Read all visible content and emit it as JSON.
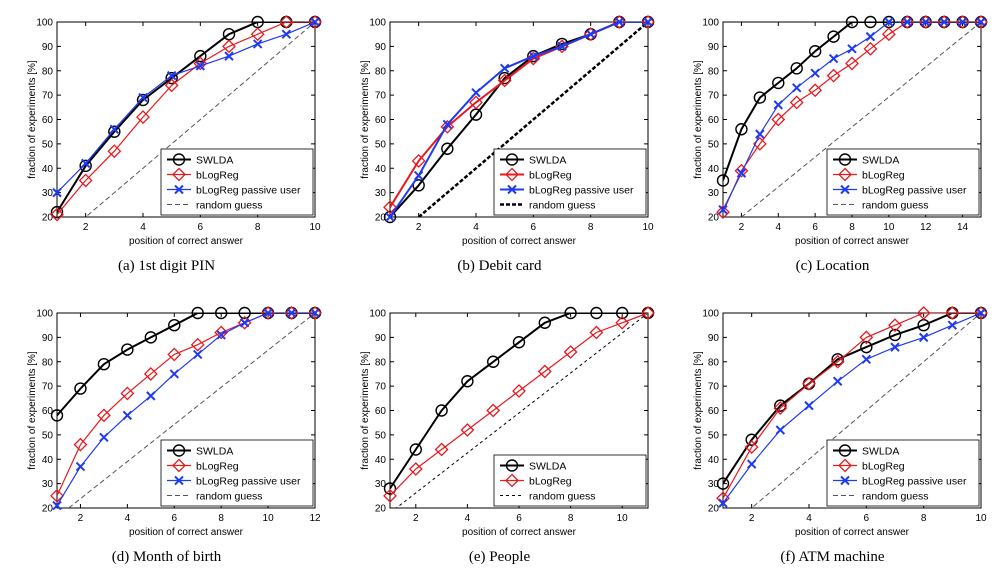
{
  "figure": {
    "colors": {
      "swlda": "#000000",
      "blogreg": "#e8191f",
      "passive": "#1f3bf0",
      "random": "#555555",
      "randomThick": "#000000"
    }
  },
  "chart_data": [
    {
      "id": "a",
      "type": "line",
      "caption": "(a) 1st digit PIN",
      "xlabel": "position of correct answer",
      "ylabel": "fraction of experiments [%]",
      "xlim": [
        1,
        10
      ],
      "ylim": [
        20,
        100
      ],
      "xticks": [
        2,
        4,
        6,
        8,
        10
      ],
      "yticks": [
        20,
        30,
        40,
        50,
        60,
        70,
        80,
        90,
        100
      ],
      "legend_position": "bottom-right",
      "series": [
        {
          "name": "SWLDA",
          "marker": "circle",
          "color": "#000000",
          "width": 2,
          "x": [
            1,
            2,
            3,
            4,
            5,
            6,
            7,
            8,
            9,
            10
          ],
          "y": [
            22,
            41,
            55,
            68,
            77,
            86,
            95,
            100,
            100,
            100
          ]
        },
        {
          "name": "bLogReg",
          "marker": "diamond",
          "color": "#e8191f",
          "width": 1.2,
          "x": [
            1,
            2,
            3,
            4,
            5,
            6,
            7,
            8,
            9,
            10
          ],
          "y": [
            21,
            35,
            47,
            61,
            74,
            83,
            90,
            95,
            100,
            100
          ]
        },
        {
          "name": "bLogReg passive user",
          "marker": "x",
          "color": "#1f3bf0",
          "width": 1.2,
          "x": [
            1,
            2,
            3,
            4,
            5,
            6,
            7,
            8,
            9,
            10
          ],
          "y": [
            30,
            42,
            56,
            69,
            78,
            82,
            86,
            91,
            95,
            100
          ]
        },
        {
          "name": "random guess",
          "marker": "none",
          "color": "#555555",
          "width": 1,
          "dash": "5,3",
          "x": [
            1,
            10
          ],
          "y": [
            10,
            100
          ]
        }
      ]
    },
    {
      "id": "b",
      "type": "line",
      "caption": "(b) Debit card",
      "xlabel": "position of correct answer",
      "ylabel": "fraction of experiments [%]",
      "xlim": [
        1,
        10
      ],
      "ylim": [
        20,
        100
      ],
      "xticks": [
        2,
        4,
        6,
        8,
        10
      ],
      "yticks": [
        20,
        30,
        40,
        50,
        60,
        70,
        80,
        90,
        100
      ],
      "legend_position": "bottom-right",
      "series": [
        {
          "name": "SWLDA",
          "marker": "circle",
          "color": "#000000",
          "width": 2,
          "x": [
            1,
            2,
            3,
            4,
            5,
            6,
            7,
            8,
            9,
            10
          ],
          "y": [
            20,
            33,
            48,
            62,
            77,
            86,
            91,
            95,
            100,
            100
          ]
        },
        {
          "name": "bLogReg",
          "marker": "diamond",
          "color": "#e8191f",
          "width": 2,
          "x": [
            1,
            2,
            3,
            4,
            5,
            6,
            7,
            8,
            9,
            10
          ],
          "y": [
            24,
            43,
            57,
            67,
            76,
            85,
            90,
            95,
            100,
            100
          ]
        },
        {
          "name": "bLogReg passive user",
          "marker": "x",
          "color": "#1f3bf0",
          "width": 2,
          "x": [
            1,
            2,
            3,
            4,
            5,
            6,
            7,
            8,
            9,
            10
          ],
          "y": [
            20,
            37,
            58,
            71,
            81,
            86,
            90,
            95,
            100,
            100
          ]
        },
        {
          "name": "random guess",
          "marker": "none",
          "color": "#000000",
          "width": 2.5,
          "dash": "4,2",
          "x": [
            2,
            10
          ],
          "y": [
            20,
            100
          ]
        }
      ]
    },
    {
      "id": "c",
      "type": "line",
      "caption": "(c) Location",
      "xlabel": "position of correct answer",
      "ylabel": "fraction of experiments [%]",
      "xlim": [
        1,
        15
      ],
      "ylim": [
        20,
        100
      ],
      "xticks": [
        2,
        4,
        6,
        8,
        10,
        12,
        14
      ],
      "yticks": [
        20,
        30,
        40,
        50,
        60,
        70,
        80,
        90,
        100
      ],
      "legend_position": "bottom-right",
      "series": [
        {
          "name": "SWLDA",
          "marker": "circle",
          "color": "#000000",
          "width": 2,
          "x": [
            1,
            2,
            3,
            4,
            5,
            6,
            7,
            8,
            9,
            10,
            11,
            12,
            13,
            14,
            15
          ],
          "y": [
            35,
            56,
            69,
            75,
            81,
            88,
            94,
            100,
            100,
            100,
            100,
            100,
            100,
            100,
            100
          ]
        },
        {
          "name": "bLogReg",
          "marker": "diamond",
          "color": "#e8191f",
          "width": 1.2,
          "x": [
            1,
            2,
            3,
            4,
            5,
            6,
            7,
            8,
            9,
            10,
            11,
            12,
            13,
            14,
            15
          ],
          "y": [
            22,
            39,
            50,
            60,
            67,
            72,
            78,
            83,
            89,
            95,
            100,
            100,
            100,
            100,
            100
          ]
        },
        {
          "name": "bLogReg passive user",
          "marker": "x",
          "color": "#1f3bf0",
          "width": 1.2,
          "x": [
            1,
            2,
            3,
            4,
            5,
            6,
            7,
            8,
            9,
            10,
            11,
            12,
            13,
            14,
            15
          ],
          "y": [
            23,
            38,
            54,
            66,
            73,
            79,
            85,
            89,
            94,
            100,
            100,
            100,
            100,
            100,
            100
          ]
        },
        {
          "name": "random guess",
          "marker": "none",
          "color": "#555555",
          "width": 1,
          "dash": "5,3",
          "x": [
            2,
            15
          ],
          "y": [
            20,
            100
          ]
        }
      ]
    },
    {
      "id": "d",
      "type": "line",
      "caption": "(d) Month of birth",
      "xlabel": "position of correct answer",
      "ylabel": "fraction of experiments [%]",
      "xlim": [
        1,
        12
      ],
      "ylim": [
        20,
        100
      ],
      "xticks": [
        2,
        4,
        6,
        8,
        10,
        12
      ],
      "yticks": [
        20,
        30,
        40,
        50,
        60,
        70,
        80,
        90,
        100
      ],
      "legend_position": "bottom-right",
      "series": [
        {
          "name": "SWLDA",
          "marker": "circle",
          "color": "#000000",
          "width": 2,
          "x": [
            1,
            2,
            3,
            4,
            5,
            6,
            7,
            8,
            9,
            10,
            11,
            12
          ],
          "y": [
            58,
            69,
            79,
            85,
            90,
            95,
            100,
            100,
            100,
            100,
            100,
            100
          ]
        },
        {
          "name": "bLogReg",
          "marker": "diamond",
          "color": "#e8191f",
          "width": 1.2,
          "x": [
            1,
            2,
            3,
            4,
            5,
            6,
            7,
            8,
            9,
            10,
            11,
            12
          ],
          "y": [
            25,
            46,
            58,
            67,
            75,
            83,
            87,
            92,
            96,
            100,
            100,
            100
          ]
        },
        {
          "name": "bLogReg passive user",
          "marker": "x",
          "color": "#1f3bf0",
          "width": 1.2,
          "x": [
            1,
            2,
            3,
            4,
            5,
            6,
            7,
            8,
            9,
            10,
            11,
            12
          ],
          "y": [
            21,
            37,
            49,
            58,
            66,
            75,
            83,
            91,
            96,
            100,
            100,
            100
          ]
        },
        {
          "name": "random guess",
          "marker": "none",
          "color": "#555555",
          "width": 1,
          "dash": "5,3",
          "x": [
            1.5,
            12
          ],
          "y": [
            20,
            100
          ]
        }
      ]
    },
    {
      "id": "e",
      "type": "line",
      "caption": "(e) People",
      "xlabel": "position of correct answer",
      "ylabel": "fraction of experiments [%]",
      "xlim": [
        1,
        11
      ],
      "ylim": [
        20,
        100
      ],
      "xticks": [
        2,
        4,
        6,
        8,
        10
      ],
      "yticks": [
        20,
        30,
        40,
        50,
        60,
        70,
        80,
        90,
        100
      ],
      "legend_position": "bottom-right",
      "series": [
        {
          "name": "SWLDA",
          "marker": "circle",
          "color": "#000000",
          "width": 2,
          "x": [
            1,
            2,
            3,
            4,
            5,
            6,
            7,
            8,
            9,
            10,
            11
          ],
          "y": [
            28,
            44,
            60,
            72,
            80,
            88,
            96,
            100,
            100,
            100,
            100
          ]
        },
        {
          "name": "bLogReg",
          "marker": "diamond",
          "color": "#e8191f",
          "width": 1.2,
          "x": [
            1,
            2,
            3,
            4,
            5,
            6,
            7,
            8,
            9,
            10,
            11
          ],
          "y": [
            25,
            36,
            44,
            52,
            60,
            68,
            76,
            84,
            92,
            96,
            100
          ]
        },
        {
          "name": "random guess",
          "marker": "none",
          "color": "#000000",
          "width": 1,
          "dash": "3,3",
          "x": [
            1,
            11
          ],
          "y": [
            18,
            100
          ]
        }
      ]
    },
    {
      "id": "f",
      "type": "line",
      "caption": "(f) ATM machine",
      "xlabel": "position of correct answer",
      "ylabel": "fraction of experiments [%]",
      "xlim": [
        1,
        10
      ],
      "ylim": [
        20,
        100
      ],
      "xticks": [
        2,
        4,
        6,
        8,
        10
      ],
      "yticks": [
        20,
        30,
        40,
        50,
        60,
        70,
        80,
        90,
        100
      ],
      "legend_position": "bottom-right",
      "series": [
        {
          "name": "SWLDA",
          "marker": "circle",
          "color": "#000000",
          "width": 2,
          "x": [
            1,
            2,
            3,
            4,
            5,
            6,
            7,
            8,
            9,
            10
          ],
          "y": [
            30,
            48,
            62,
            71,
            81,
            86,
            91,
            95,
            100,
            100
          ]
        },
        {
          "name": "bLogReg",
          "marker": "diamond",
          "color": "#e8191f",
          "width": 1.2,
          "x": [
            1,
            2,
            3,
            4,
            5,
            6,
            7,
            8,
            9,
            10
          ],
          "y": [
            24,
            45,
            61,
            71,
            80,
            90,
            95,
            100,
            100,
            100
          ]
        },
        {
          "name": "bLogReg passive user",
          "marker": "x",
          "color": "#1f3bf0",
          "width": 1.2,
          "x": [
            1,
            2,
            3,
            4,
            5,
            6,
            7,
            8,
            9,
            10
          ],
          "y": [
            22,
            38,
            52,
            62,
            72,
            81,
            86,
            90,
            95,
            100
          ]
        },
        {
          "name": "random guess",
          "marker": "none",
          "color": "#555555",
          "width": 1,
          "dash": "5,3",
          "x": [
            1,
            10
          ],
          "y": [
            10,
            100
          ]
        }
      ]
    }
  ]
}
